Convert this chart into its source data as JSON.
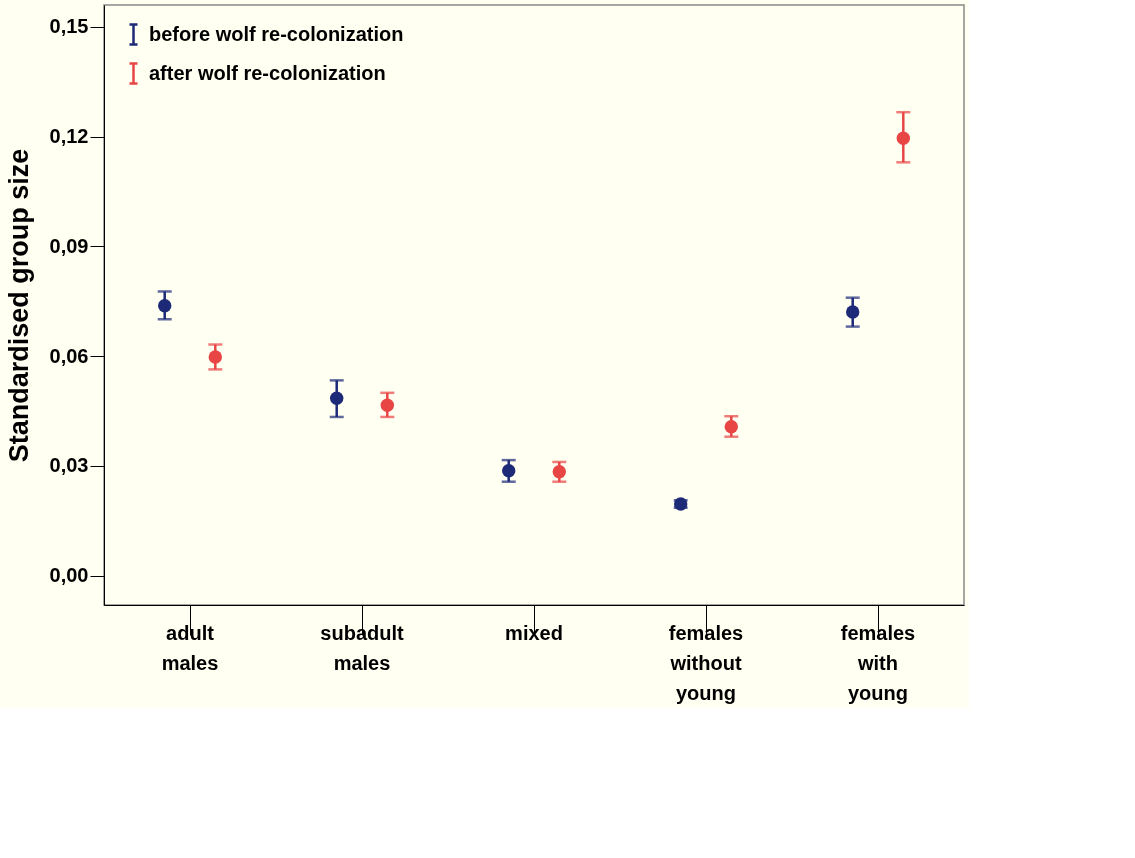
{
  "chart_data": {
    "type": "scatter",
    "ylabel": "Standardised group size",
    "categories": [
      "adult males",
      "subadult males",
      "mixed",
      "females without young",
      "females with young"
    ],
    "series": [
      {
        "name": "before wolf re-colonization",
        "color": "#1c2a78",
        "values": [
          0.0738,
          0.0485,
          0.0287,
          0.0196,
          0.0721
        ],
        "errors": [
          [
            0.0701,
            0.0777
          ],
          [
            0.0434,
            0.0534
          ],
          [
            0.0257,
            0.0316
          ],
          [
            0.0186,
            0.0206
          ],
          [
            0.0681,
            0.076
          ]
        ]
      },
      {
        "name": "after wolf re-colonization",
        "color": "#e84545",
        "values": [
          0.0598,
          0.0466,
          0.0284,
          0.0407,
          0.1196
        ],
        "errors": [
          [
            0.0564,
            0.0632
          ],
          [
            0.0434,
            0.05
          ],
          [
            0.0257,
            0.0311
          ],
          [
            0.038,
            0.0436
          ],
          [
            0.113,
            0.1267
          ]
        ]
      }
    ],
    "ylim": [
      -0.008,
      0.156
    ],
    "yticks": [
      {
        "value": 0,
        "label": "0,00"
      },
      {
        "value": 0.03,
        "label": "0,03"
      },
      {
        "value": 0.06,
        "label": "0,06"
      },
      {
        "value": 0.09,
        "label": "0,09"
      },
      {
        "value": 0.12,
        "label": "0,12"
      },
      {
        "value": 0.15,
        "label": "0,15"
      }
    ],
    "marker": "circle",
    "grid": false,
    "legend": "top left"
  }
}
